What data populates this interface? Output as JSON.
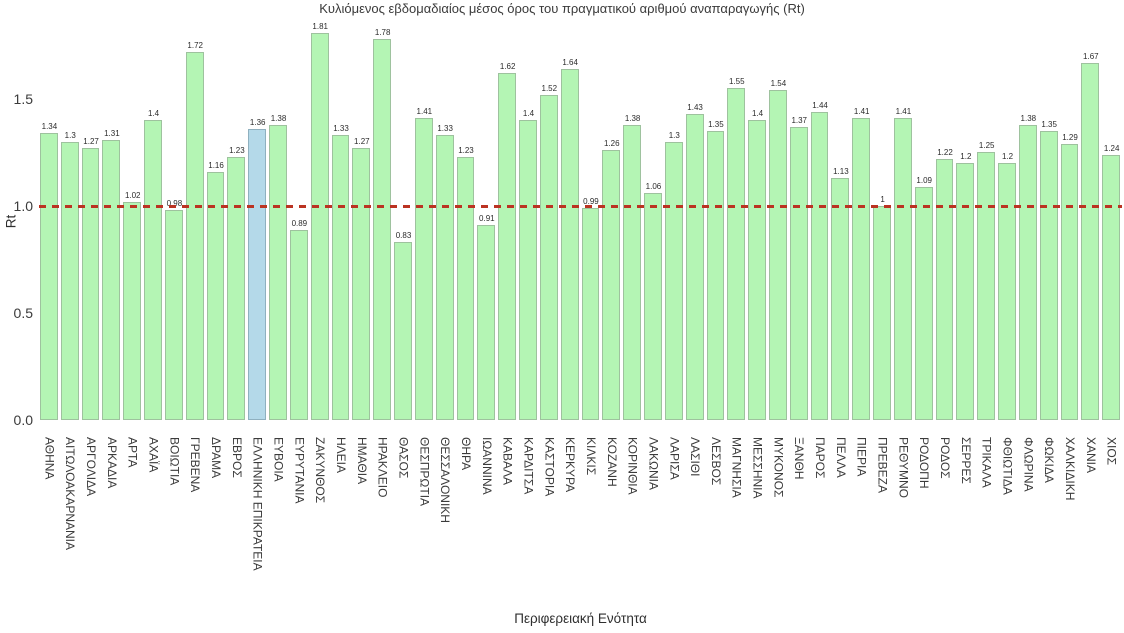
{
  "chart_data": {
    "type": "bar",
    "title": "Κυλιόμενος εβδομαδιαίος μέσος όρος του πραγματικού αριθμού αναπαραγωγής (Rt)",
    "xlabel": "Περιφερειακή Ενότητα",
    "ylabel": "Rt",
    "ylim": [
      0.0,
      1.96
    ],
    "yticks": [
      "0.0",
      "0.5",
      "1.0",
      "1.5"
    ],
    "grid": "off",
    "legend": "none",
    "bar_color": "#b4f5b4",
    "bar_border_color": "#9ec29e",
    "highlight_color": "#b4d9e9",
    "highlight_category": "ΕΛΛΗΝΙΚΗ ΕΠΙΚΡΑΤΕΙΑ",
    "reference_line": {
      "value": 1.0,
      "style": "dashed",
      "color": "#bb3322"
    },
    "categories": [
      "ΑΘΗΝΑ",
      "ΑΙΤΩΛΟΑΚΑΡΝΑΝΙΑ",
      "ΑΡΓΟΛΙΔΑ",
      "ΑΡΚΑΔΙΑ",
      "ΑΡΤΑ",
      "ΑΧΑΪΑ",
      "ΒΟΙΩΤΙΑ",
      "ΓΡΕΒΕΝΑ",
      "ΔΡΑΜΑ",
      "ΕΒΡΟΣ",
      "ΕΛΛΗΝΙΚΗ ΕΠΙΚΡΑΤΕΙΑ",
      "ΕΥΒΟΙΑ",
      "ΕΥΡΥΤΑΝΙΑ",
      "ΖΑΚΥΝΘΟΣ",
      "ΗΛΕΙΑ",
      "ΗΜΑΘΙΑ",
      "ΗΡΑΚΛΕΙΟ",
      "ΘΑΣΟΣ",
      "ΘΕΣΠΡΩΤΙΑ",
      "ΘΕΣΣΑΛΟΝΙΚΗ",
      "ΘΗΡΑ",
      "ΙΩΑΝΝΙΝΑ",
      "ΚΑΒΑΛΑ",
      "ΚΑΡΔΙΤΣΑ",
      "ΚΑΣΤΟΡΙΑ",
      "ΚΕΡΚΥΡΑ",
      "ΚΙΛΚΙΣ",
      "ΚΟΖΑΝΗ",
      "ΚΟΡΙΝΘΙΑ",
      "ΛΑΚΩΝΙΑ",
      "ΛΑΡΙΣΑ",
      "ΛΑΣΙΘΙ",
      "ΛΕΣΒΟΣ",
      "ΜΑΓΝΗΣΙΑ",
      "ΜΕΣΣΗΝΙΑ",
      "ΜΥΚΟΝΟΣ",
      "ΞΑΝΘΗ",
      "ΠΑΡΟΣ",
      "ΠΕΛΛΑ",
      "ΠΙΕΡΙΑ",
      "ΠΡΕΒΕΖΑ",
      "ΡΕΘΥΜΝΟ",
      "ΡΟΔΟΠΗ",
      "ΡΟΔΟΣ",
      "ΣΕΡΡΕΣ",
      "ΤΡΙΚΑΛΑ",
      "ΦΘΙΩΤΙΔΑ",
      "ΦΛΩΡΙΝΑ",
      "ΦΩΚΙΔΑ",
      "ΧΑΛΚΙΔΙΚΗ",
      "ΧΑΝΙΑ",
      "ΧΙΟΣ"
    ],
    "values": [
      1.34,
      1.3,
      1.27,
      1.31,
      1.02,
      1.4,
      0.98,
      1.72,
      1.16,
      1.23,
      1.36,
      1.38,
      0.89,
      1.81,
      1.33,
      1.27,
      1.78,
      0.83,
      1.41,
      1.33,
      1.23,
      0.91,
      1.62,
      1.4,
      1.52,
      1.64,
      0.99,
      1.26,
      1.38,
      1.06,
      1.3,
      1.43,
      1.35,
      1.55,
      1.4,
      1.54,
      1.37,
      1.44,
      1.13,
      1.41,
      1,
      1.41,
      1.09,
      1.22,
      1.2,
      1.25,
      1.2,
      1.38,
      1.35,
      1.29,
      1.67,
      1.24
    ],
    "value_labels": [
      "1.34",
      "1.3",
      "1.27",
      "1.31",
      "1.02",
      "1.4",
      "0.98",
      "1.72",
      "1.16",
      "1.23",
      "1.36",
      "1.38",
      "0.89",
      "1.81",
      "1.33",
      "1.27",
      "1.78",
      "0.83",
      "1.41",
      "1.33",
      "1.23",
      "0.91",
      "1.62",
      "1.4",
      "1.52",
      "1.64",
      "0.99",
      "1.26",
      "1.38",
      "1.06",
      "1.3",
      "1.43",
      "1.35",
      "1.55",
      "1.4",
      "1.54",
      "1.37",
      "1.44",
      "1.13",
      "1.41",
      "1",
      "1.41",
      "1.09",
      "1.22",
      "1.2",
      "1.25",
      "1.2",
      "1.38",
      "1.35",
      "1.29",
      "1.67",
      "1.24"
    ]
  }
}
